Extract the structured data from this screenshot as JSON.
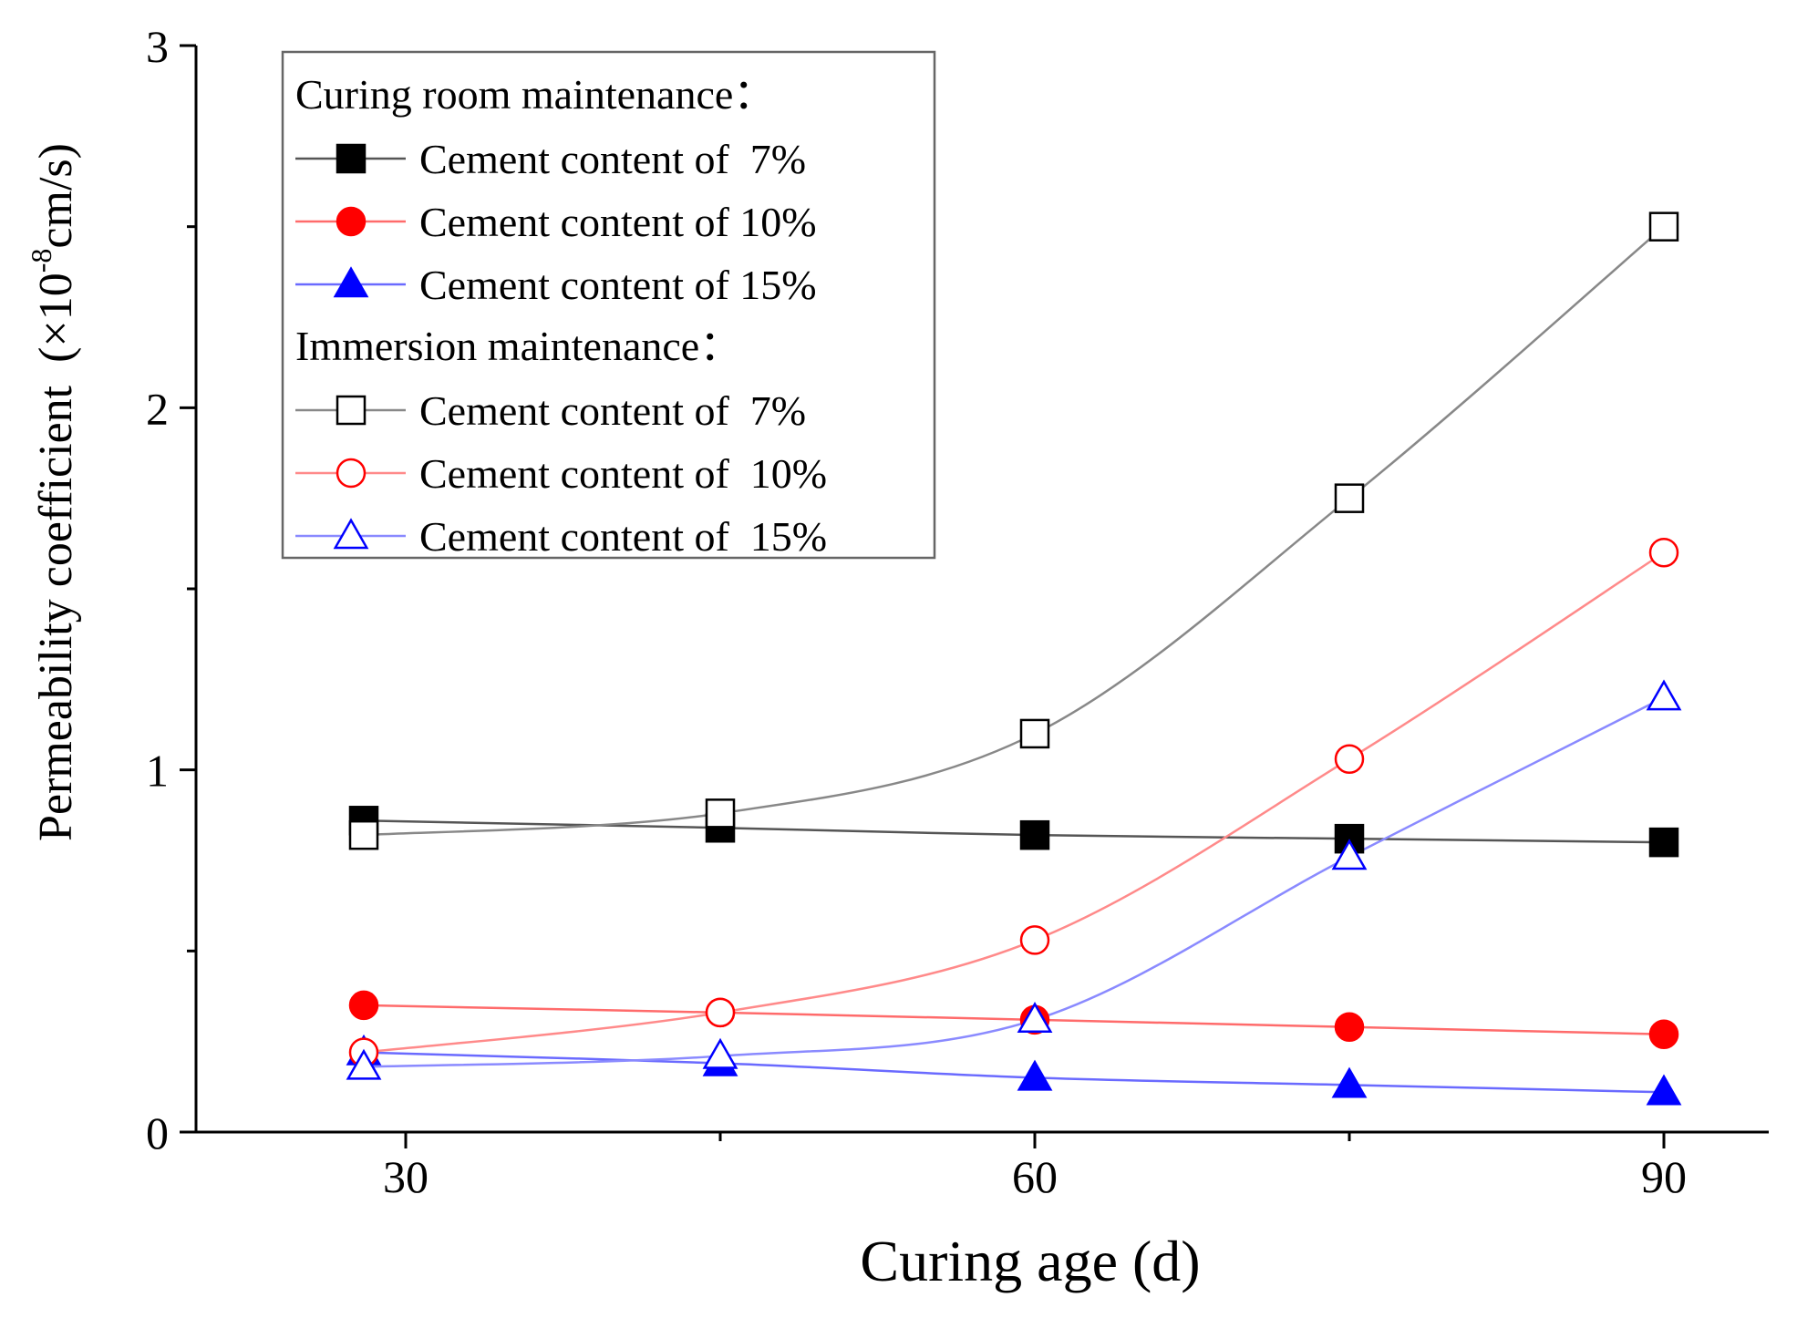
{
  "chart_data": {
    "type": "line",
    "title": "",
    "xlabel": "Curing age (d)",
    "ylabel": "Permeability coefficient",
    "ylabel_unit_prefix": "(×10",
    "ylabel_unit_exp": "-8",
    "ylabel_unit_suffix": "cm/s)",
    "xlim": [
      20,
      95
    ],
    "ylim": [
      0,
      3
    ],
    "x_ticks": [
      30,
      60,
      90
    ],
    "y_ticks": [
      0,
      1,
      2,
      3
    ],
    "x_tick_labels": [
      "30",
      "60",
      "90"
    ],
    "y_tick_labels": [
      "0",
      "1",
      "2",
      "3"
    ],
    "legend": {
      "position": "top-left",
      "groups": [
        {
          "heading": "Curing room maintenance：",
          "entries": [
            0,
            1,
            2
          ]
        },
        {
          "heading": "Immersion maintenance：",
          "entries": [
            3,
            4,
            5
          ]
        }
      ]
    },
    "series": [
      {
        "name": "Cement content of  7%",
        "group": "Curing room maintenance",
        "marker": "square",
        "filled": true,
        "color": "#000000",
        "line_color": "#555555",
        "x": [
          28,
          45,
          60,
          75,
          90
        ],
        "values": [
          0.86,
          0.84,
          0.82,
          0.81,
          0.8
        ]
      },
      {
        "name": "Cement content of 10%",
        "group": "Curing room maintenance",
        "marker": "circle",
        "filled": true,
        "color": "#ff0000",
        "line_color": "#ff6b6b",
        "x": [
          28,
          45,
          60,
          75,
          90
        ],
        "values": [
          0.35,
          0.33,
          0.31,
          0.29,
          0.27
        ]
      },
      {
        "name": "Cement content of 15%",
        "group": "Curing room maintenance",
        "marker": "triangle",
        "filled": true,
        "color": "#0000ff",
        "line_color": "#6a6aff",
        "x": [
          28,
          45,
          60,
          75,
          90
        ],
        "values": [
          0.22,
          0.19,
          0.15,
          0.13,
          0.11
        ]
      },
      {
        "name": "Cement content of  7%",
        "group": "Immersion maintenance",
        "marker": "square",
        "filled": false,
        "color": "#000000",
        "line_color": "#888888",
        "x": [
          28,
          45,
          60,
          75,
          90
        ],
        "values": [
          0.82,
          0.88,
          1.1,
          1.75,
          2.5
        ]
      },
      {
        "name": "Cement content of  10%",
        "group": "Immersion maintenance",
        "marker": "circle",
        "filled": false,
        "color": "#ff0000",
        "line_color": "#ff8a8a",
        "x": [
          28,
          45,
          60,
          75,
          90
        ],
        "values": [
          0.22,
          0.33,
          0.53,
          1.03,
          1.6
        ]
      },
      {
        "name": "Cement content of  15%",
        "group": "Immersion maintenance",
        "marker": "triangle",
        "filled": false,
        "color": "#0000ff",
        "line_color": "#8a8aff",
        "x": [
          28,
          45,
          60,
          75,
          90
        ],
        "values": [
          0.18,
          0.21,
          0.31,
          0.76,
          1.2
        ]
      }
    ]
  }
}
